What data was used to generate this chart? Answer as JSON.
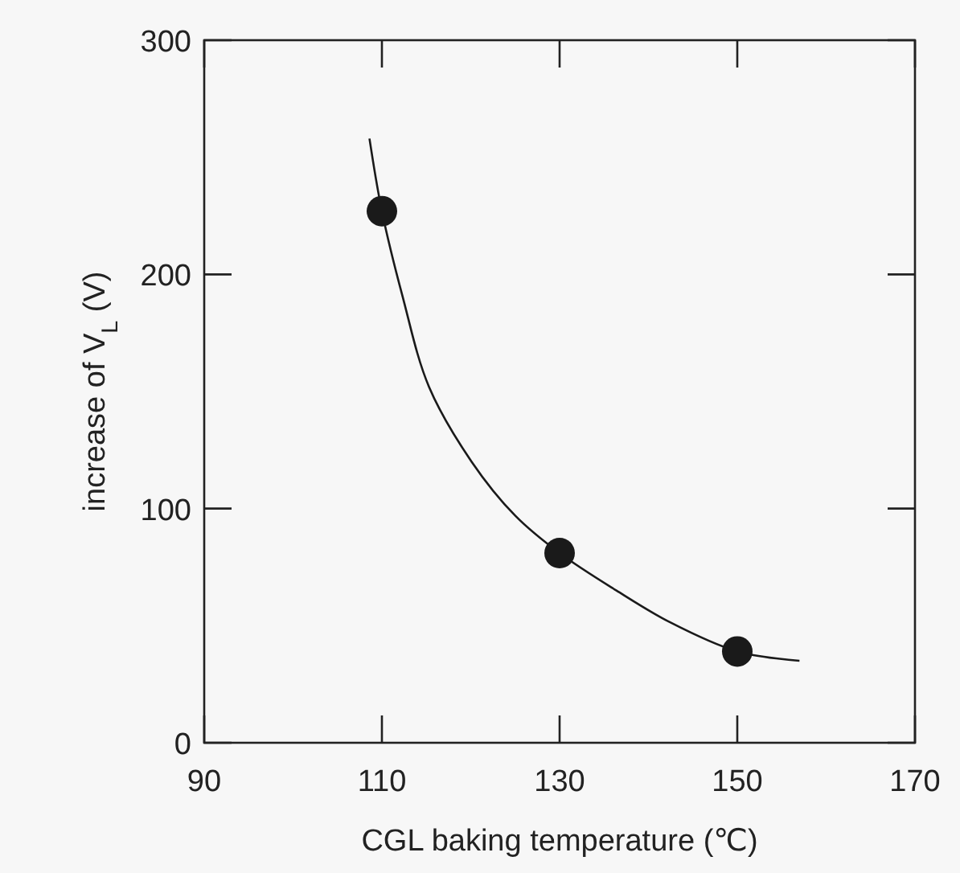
{
  "chart_data": {
    "type": "scatter",
    "xlabel": "CGL baking temperature (℃)",
    "ylabel": "increase of V$_{L}$ (V)",
    "xlim": [
      90,
      170
    ],
    "ylim": [
      0,
      300
    ],
    "xticks": [
      90,
      110,
      130,
      150,
      170
    ],
    "yticks": [
      0,
      100,
      200,
      300
    ],
    "grid": false,
    "marker": "circle",
    "series": [
      {
        "color": "#1a1a1a",
        "x": [
          110,
          130,
          150
        ],
        "values": [
          227,
          81,
          39
        ]
      },
      {
        "type": "line",
        "color": "#1a1a1a",
        "line_style": "solid",
        "marker": "none",
        "x": [
          108.6,
          110,
          112.3,
          115.3,
          120.1,
          125,
          130,
          136.4,
          142.4,
          150,
          157
        ],
        "values": [
          258,
          227,
          191,
          152,
          120,
          97,
          81,
          65,
          51.5,
          39,
          35
        ]
      }
    ]
  }
}
